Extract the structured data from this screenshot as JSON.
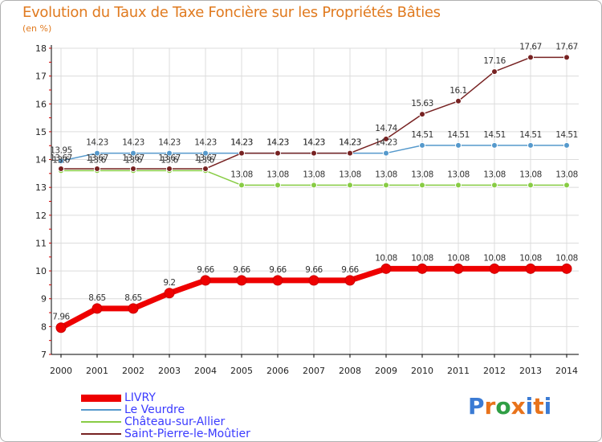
{
  "title": "Evolution du Taux de Taxe Foncière sur les Propriétés Bâties",
  "unit_label": "(en %)",
  "logo_text": "Proxiti",
  "chart_data": {
    "type": "line",
    "title": "Evolution du Taux de Taxe Foncière sur les Propriétés Bâties",
    "ylabel": "(en %)",
    "xlabel": "",
    "x": [
      "2000",
      "2001",
      "2002",
      "2003",
      "2004",
      "2005",
      "2006",
      "2007",
      "2008",
      "2009",
      "2010",
      "2011",
      "2012",
      "2013",
      "2014"
    ],
    "ylim": [
      7,
      18
    ],
    "yticks": [
      7,
      8,
      9,
      10,
      11,
      12,
      13,
      14,
      15,
      16,
      17,
      18
    ],
    "series": [
      {
        "name": "LIVRY",
        "color": "#ee0000",
        "values": [
          7.96,
          8.65,
          8.65,
          9.2,
          9.66,
          9.66,
          9.66,
          9.66,
          9.66,
          10.08,
          10.08,
          10.08,
          10.08,
          10.08,
          10.08
        ]
      },
      {
        "name": "Le Veurdre",
        "color": "#5599cc",
        "values": [
          13.95,
          14.23,
          14.23,
          14.23,
          14.23,
          14.23,
          14.23,
          14.23,
          14.23,
          14.23,
          14.51,
          14.51,
          14.51,
          14.51,
          14.51
        ]
      },
      {
        "name": "Château-sur-Allier",
        "color": "#88cc44",
        "values": [
          13.6,
          13.6,
          13.6,
          13.6,
          13.6,
          13.08,
          13.08,
          13.08,
          13.08,
          13.08,
          13.08,
          13.08,
          13.08,
          13.08,
          13.08
        ]
      },
      {
        "name": "Saint-Pierre-le-Moûtier",
        "color": "#772222",
        "values": [
          13.67,
          13.67,
          13.67,
          13.67,
          13.67,
          14.23,
          14.23,
          14.23,
          14.23,
          14.74,
          15.63,
          16.1,
          17.16,
          17.67,
          17.67
        ]
      }
    ]
  }
}
